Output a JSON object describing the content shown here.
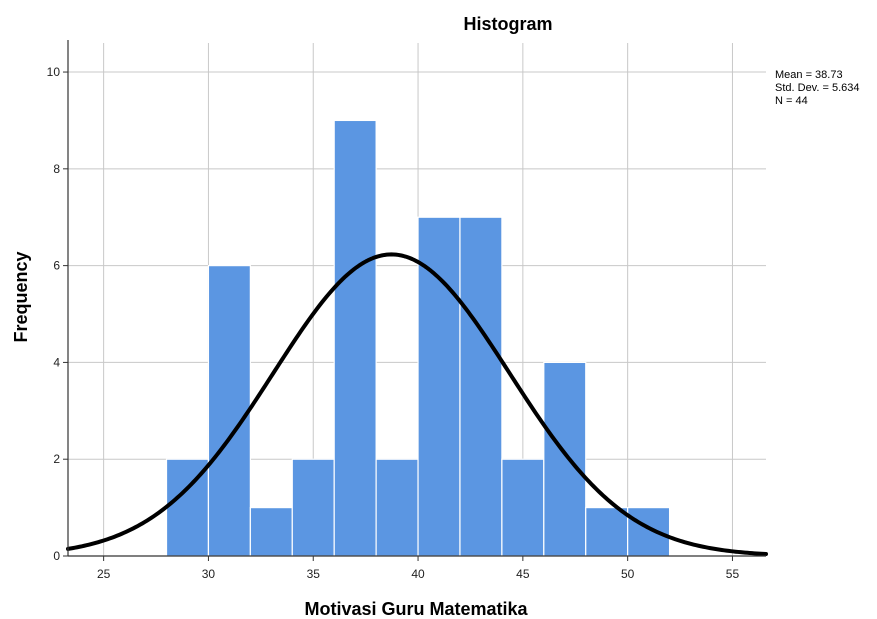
{
  "chart_data": {
    "type": "bar",
    "title": "Histogram",
    "xlabel": "Motivasi Guru Matematika",
    "ylabel": "Frequency",
    "xlim": [
      23.3,
      56.6
    ],
    "ylim": [
      0,
      10.6
    ],
    "x_ticks": [
      25,
      30,
      35,
      40,
      45,
      50,
      55
    ],
    "y_ticks": [
      0,
      2,
      4,
      6,
      8,
      10
    ],
    "grid": true,
    "bin_width": 2,
    "bins": [
      {
        "start": 28,
        "end": 30,
        "count": 2
      },
      {
        "start": 30,
        "end": 32,
        "count": 6
      },
      {
        "start": 32,
        "end": 34,
        "count": 1
      },
      {
        "start": 34,
        "end": 36,
        "count": 2
      },
      {
        "start": 36,
        "end": 38,
        "count": 9
      },
      {
        "start": 38,
        "end": 40,
        "count": 2
      },
      {
        "start": 40,
        "end": 42,
        "count": 7
      },
      {
        "start": 42,
        "end": 44,
        "count": 7
      },
      {
        "start": 44,
        "end": 46,
        "count": 2
      },
      {
        "start": 46,
        "end": 48,
        "count": 4
      },
      {
        "start": 48,
        "end": 50,
        "count": 1
      },
      {
        "start": 50,
        "end": 52,
        "count": 1
      }
    ],
    "normal_curve": {
      "mean": 38.73,
      "sd": 5.634,
      "n": 44
    },
    "stats": {
      "mean_text": "Mean = 38.73",
      "sd_text": "Std. Dev. = 5.634",
      "n_text": "N = 44"
    },
    "colors": {
      "bar": "#5B96E2",
      "bar_edge": "#ffffff",
      "curve": "#000000",
      "grid": "#c8c8c8",
      "axis": "#333333"
    }
  }
}
